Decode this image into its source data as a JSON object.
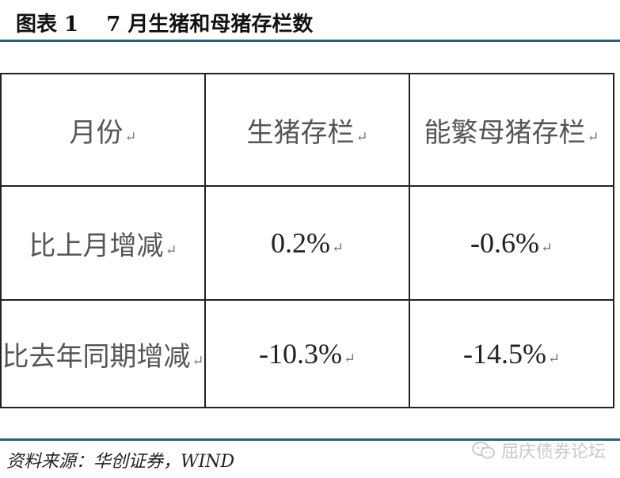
{
  "header": {
    "title": "图表 1　 7 月生猪和母猪存栏数"
  },
  "table": {
    "columns": [
      "月份",
      "生猪存栏",
      "能繁母猪存栏"
    ],
    "rows": [
      [
        "比上月增减",
        "0.2%",
        "-0.6%"
      ],
      [
        "比去年同期增减",
        "-10.3%",
        "-14.5%"
      ]
    ],
    "paragraph_mark": "↵"
  },
  "footer": {
    "source": "资料来源：华创证券，WIND",
    "watermark": "屈庆债券论坛"
  },
  "colors": {
    "rule": "#2f5f7a",
    "border": "#222222",
    "watermark": "#c9c9c9"
  },
  "icons": {
    "watermark_icon": "wechat-icon"
  }
}
